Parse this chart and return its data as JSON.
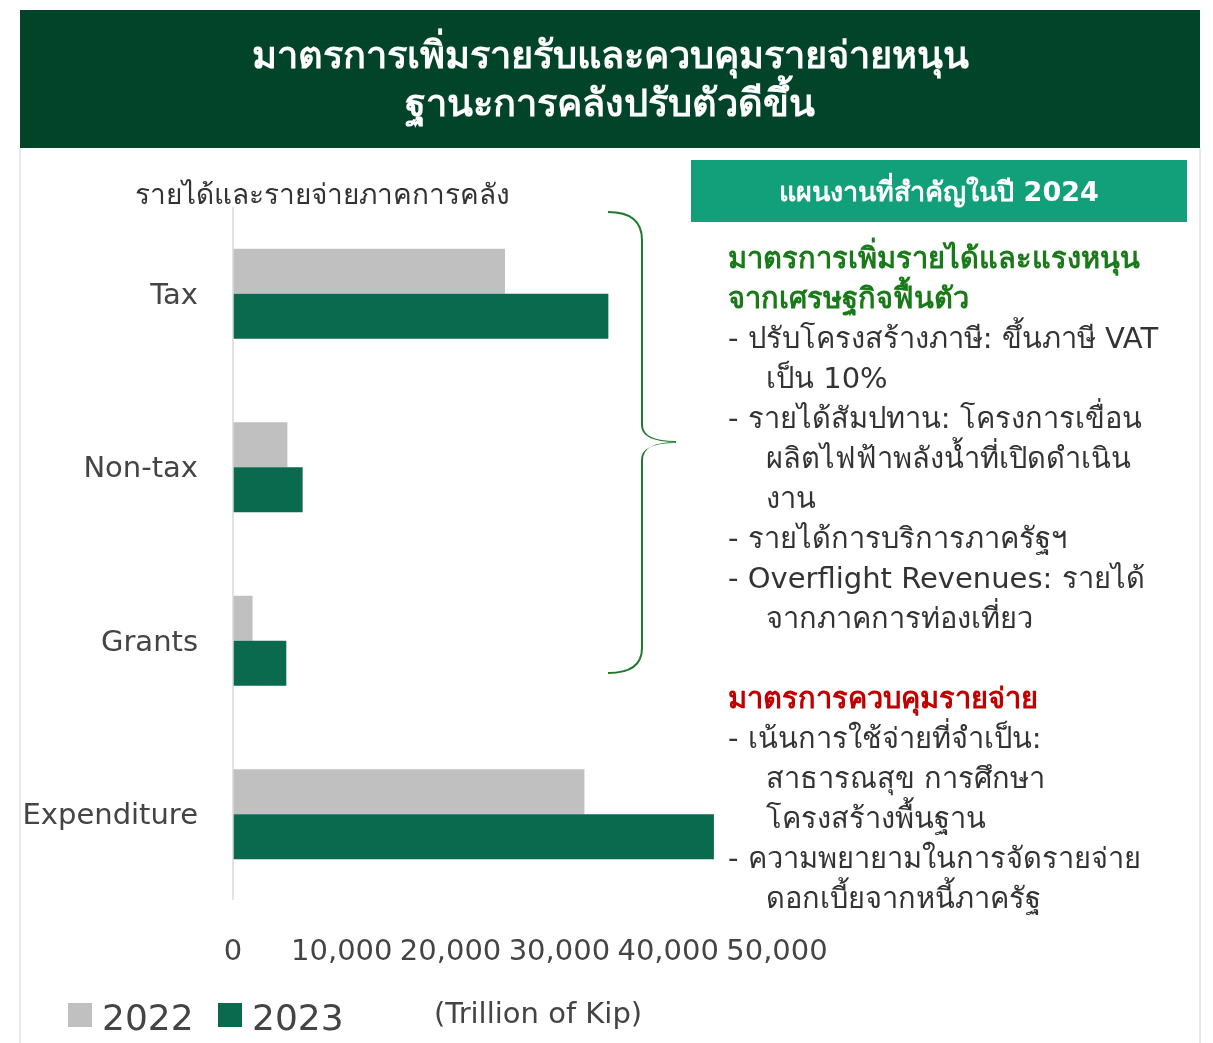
{
  "chart_data": {
    "type": "bar",
    "orientation": "horizontal",
    "title": "มาตรการเพิ่มรายรับและควบคุมรายจ่ายหนุนฐานะการคลังปรับตัวดีขึ้น",
    "subtitle": "รายได้และรายจ่ายภาคการคลัง",
    "xlabel": "(Trillion of Kip)",
    "categories": [
      "Tax",
      "Non-tax",
      "Grants",
      "Expenditure"
    ],
    "series": [
      {
        "name": "2022",
        "color": "#c0c0c0",
        "values": [
          25000,
          5000,
          1800,
          32300
        ]
      },
      {
        "name": "2023",
        "color": "#0a6a4e",
        "values": [
          34500,
          6400,
          4900,
          44200
        ]
      }
    ],
    "xlim": [
      0,
      50000
    ],
    "xticks": [
      {
        "value": 0,
        "label": "0"
      },
      {
        "value": 10000,
        "label": "10,000"
      },
      {
        "value": 20000,
        "label": "20,000"
      },
      {
        "value": 30000,
        "label": "30,000"
      },
      {
        "value": 40000,
        "label": "40,000"
      },
      {
        "value": 50000,
        "label": "50,000"
      }
    ],
    "legend": "bottom left",
    "grid": false,
    "annotations": [
      "แผนงานที่สำคัญในปี 2024",
      "มาตรการเพิ่มรายได้และแรงหนุนจากเศรษฐกิจฟื้นตัว",
      "- ปรับโครงสร้างภาษี: ขึ้นภาษี VAT เป็น 10%",
      "- รายได้สัมปทาน: โครงการเขื่อนผลิตไฟฟ้าพลังน้ำที่เปิดดำเนินงาน",
      "- รายได้การบริการภาครัฐฯ",
      "- Overflight Revenues: รายได้จากภาคการท่องเที่ยว",
      "มาตรการควบคุมรายจ่าย",
      "- เน้นการใช้จ่ายที่จำเป็น: สาธารณสุข การศึกษา โครงสร้างพื้นฐาน",
      "- ความพยายามในการจัดรายจ่ายดอกเบี้ยจากหนี้ภาครัฐ"
    ]
  }
}
